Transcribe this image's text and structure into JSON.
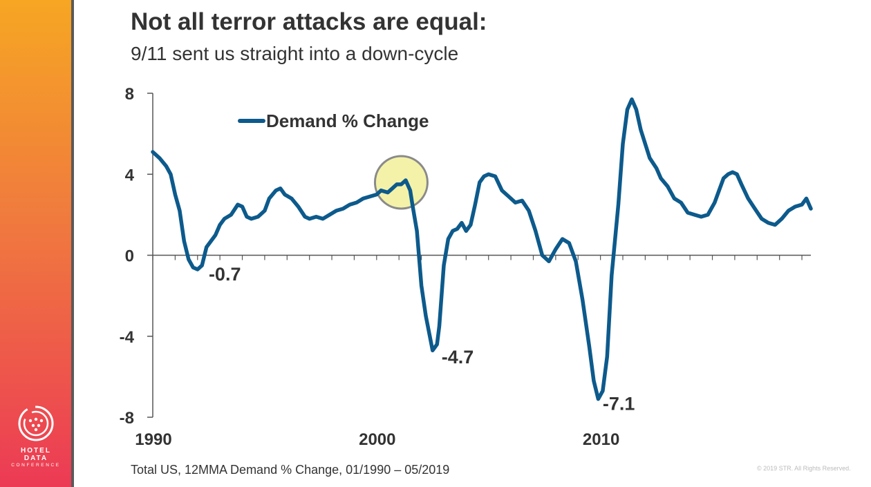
{
  "title": "Not all terror attacks are equal:",
  "subtitle": "9/11 sent us straight into a down-cycle",
  "footnote": "Total US, 12MMA Demand % Change, 01/1990 – 05/2019",
  "copyright": "© 2019 STR. All Rights Reserved.",
  "logo": {
    "line1": "HOTEL DATA",
    "line2": "CONFERENCE"
  },
  "colors": {
    "series": "#0d5a8c",
    "highlight_fill": "#f3f2a8",
    "highlight_stroke": "#8a8a8a",
    "axis": "#555555"
  },
  "chart_data": {
    "type": "line",
    "xlabel": "",
    "ylabel": "",
    "xlim": [
      1990,
      2019.4
    ],
    "ylim": [
      -8,
      8
    ],
    "y_ticks": [
      8,
      4,
      0,
      -4,
      -8
    ],
    "x_tick_labels": [
      {
        "value": 1990,
        "label": "1990"
      },
      {
        "value": 2000,
        "label": "2000"
      },
      {
        "value": 2010,
        "label": "2010"
      }
    ],
    "grid": false,
    "legend_position": "top-left",
    "series": [
      {
        "name": "Demand % Change",
        "points": [
          [
            1990.0,
            5.1
          ],
          [
            1990.3,
            4.8
          ],
          [
            1990.6,
            4.4
          ],
          [
            1990.8,
            4.0
          ],
          [
            1991.0,
            3.0
          ],
          [
            1991.2,
            2.2
          ],
          [
            1991.4,
            0.7
          ],
          [
            1991.6,
            -0.2
          ],
          [
            1991.8,
            -0.6
          ],
          [
            1992.0,
            -0.7
          ],
          [
            1992.2,
            -0.5
          ],
          [
            1992.4,
            0.4
          ],
          [
            1992.6,
            0.7
          ],
          [
            1992.8,
            1.0
          ],
          [
            1993.0,
            1.5
          ],
          [
            1993.2,
            1.8
          ],
          [
            1993.5,
            2.0
          ],
          [
            1993.8,
            2.5
          ],
          [
            1994.0,
            2.4
          ],
          [
            1994.2,
            1.9
          ],
          [
            1994.4,
            1.8
          ],
          [
            1994.7,
            1.9
          ],
          [
            1995.0,
            2.2
          ],
          [
            1995.2,
            2.8
          ],
          [
            1995.5,
            3.2
          ],
          [
            1995.7,
            3.3
          ],
          [
            1995.9,
            3.0
          ],
          [
            1996.2,
            2.8
          ],
          [
            1996.5,
            2.4
          ],
          [
            1996.8,
            1.9
          ],
          [
            1997.0,
            1.8
          ],
          [
            1997.3,
            1.9
          ],
          [
            1997.6,
            1.8
          ],
          [
            1997.9,
            2.0
          ],
          [
            1998.2,
            2.2
          ],
          [
            1998.5,
            2.3
          ],
          [
            1998.8,
            2.5
          ],
          [
            1999.1,
            2.6
          ],
          [
            1999.4,
            2.8
          ],
          [
            1999.7,
            2.9
          ],
          [
            2000.0,
            3.0
          ],
          [
            2000.2,
            3.2
          ],
          [
            2000.5,
            3.1
          ],
          [
            2000.7,
            3.3
          ],
          [
            2000.9,
            3.5
          ],
          [
            2001.1,
            3.5
          ],
          [
            2001.3,
            3.7
          ],
          [
            2001.5,
            3.2
          ],
          [
            2001.6,
            2.5
          ],
          [
            2001.8,
            1.2
          ],
          [
            2002.0,
            -1.5
          ],
          [
            2002.2,
            -3.0
          ],
          [
            2002.5,
            -4.7
          ],
          [
            2002.7,
            -4.4
          ],
          [
            2002.8,
            -3.5
          ],
          [
            2003.0,
            -0.5
          ],
          [
            2003.2,
            0.8
          ],
          [
            2003.4,
            1.2
          ],
          [
            2003.6,
            1.3
          ],
          [
            2003.8,
            1.6
          ],
          [
            2004.0,
            1.2
          ],
          [
            2004.2,
            1.5
          ],
          [
            2004.4,
            2.5
          ],
          [
            2004.6,
            3.6
          ],
          [
            2004.8,
            3.9
          ],
          [
            2005.0,
            4.0
          ],
          [
            2005.3,
            3.9
          ],
          [
            2005.6,
            3.2
          ],
          [
            2005.9,
            2.9
          ],
          [
            2006.2,
            2.6
          ],
          [
            2006.5,
            2.7
          ],
          [
            2006.8,
            2.2
          ],
          [
            2007.1,
            1.2
          ],
          [
            2007.4,
            0.0
          ],
          [
            2007.7,
            -0.3
          ],
          [
            2008.0,
            0.3
          ],
          [
            2008.3,
            0.8
          ],
          [
            2008.6,
            0.6
          ],
          [
            2008.9,
            -0.3
          ],
          [
            2009.2,
            -2.2
          ],
          [
            2009.5,
            -4.5
          ],
          [
            2009.7,
            -6.2
          ],
          [
            2009.9,
            -7.1
          ],
          [
            2010.1,
            -6.7
          ],
          [
            2010.3,
            -5.0
          ],
          [
            2010.5,
            -1.0
          ],
          [
            2010.8,
            2.5
          ],
          [
            2011.0,
            5.5
          ],
          [
            2011.2,
            7.2
          ],
          [
            2011.4,
            7.7
          ],
          [
            2011.6,
            7.2
          ],
          [
            2011.8,
            6.2
          ],
          [
            2012.0,
            5.5
          ],
          [
            2012.2,
            4.8
          ],
          [
            2012.5,
            4.3
          ],
          [
            2012.7,
            3.8
          ],
          [
            2013.0,
            3.4
          ],
          [
            2013.3,
            2.8
          ],
          [
            2013.6,
            2.6
          ],
          [
            2013.9,
            2.1
          ],
          [
            2014.2,
            2.0
          ],
          [
            2014.5,
            1.9
          ],
          [
            2014.8,
            2.0
          ],
          [
            2015.1,
            2.6
          ],
          [
            2015.3,
            3.2
          ],
          [
            2015.5,
            3.8
          ],
          [
            2015.7,
            4.0
          ],
          [
            2015.9,
            4.1
          ],
          [
            2016.1,
            4.0
          ],
          [
            2016.3,
            3.5
          ],
          [
            2016.6,
            2.8
          ],
          [
            2016.9,
            2.3
          ],
          [
            2017.2,
            1.8
          ],
          [
            2017.5,
            1.6
          ],
          [
            2017.8,
            1.5
          ],
          [
            2018.1,
            1.8
          ],
          [
            2018.4,
            2.2
          ],
          [
            2018.7,
            2.4
          ],
          [
            2019.0,
            2.5
          ],
          [
            2019.2,
            2.8
          ],
          [
            2019.4,
            2.3
          ]
        ]
      }
    ],
    "annotations": [
      {
        "text": "-0.7",
        "x": 1992.5,
        "y": -0.9
      },
      {
        "text": "-4.7",
        "x": 2002.9,
        "y": -5.0
      },
      {
        "text": "-7.1",
        "x": 2010.1,
        "y": -7.3
      }
    ],
    "highlight": {
      "x": 2001.1,
      "y": 3.6,
      "label": ""
    }
  }
}
